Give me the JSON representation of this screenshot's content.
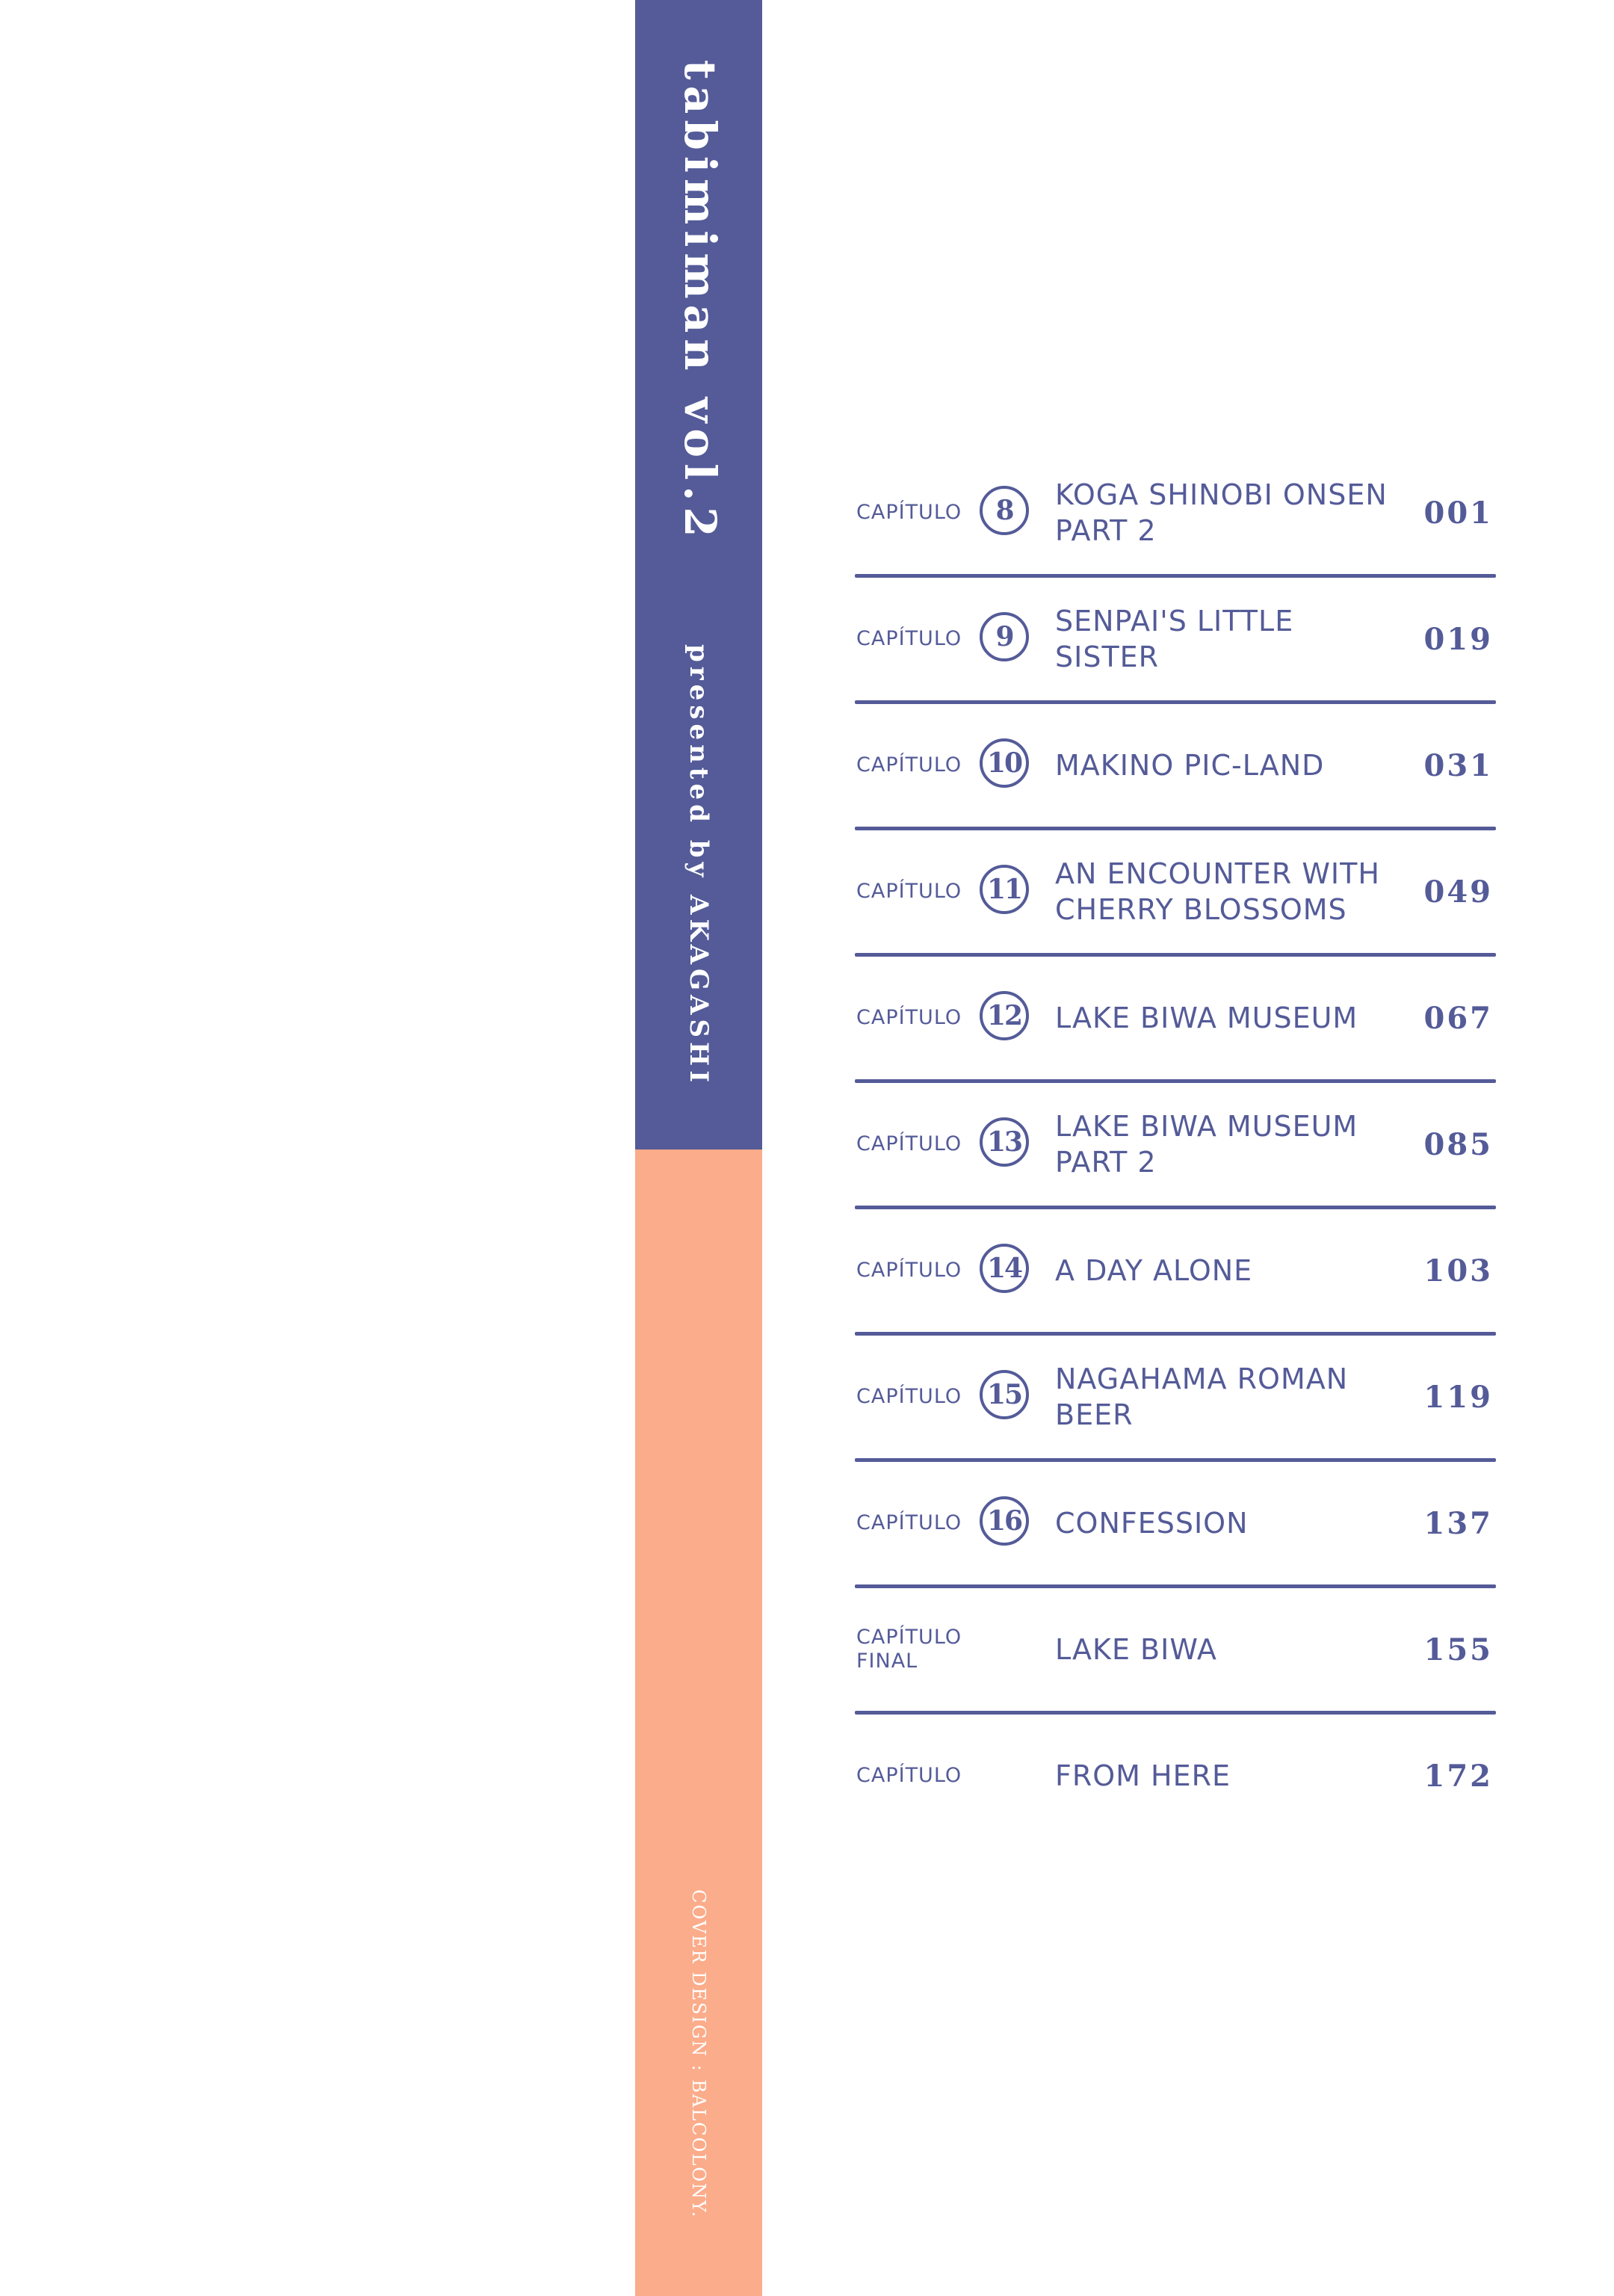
{
  "spine": {
    "title": "tabimiman vol.2",
    "author_line": "presented by AKAGASHI",
    "design_credit": "COVER DESIGN : BALCOLONY."
  },
  "colors": {
    "indigo": "#545b98",
    "peach": "#fbac8a"
  },
  "toc": {
    "entries": [
      {
        "cap": "CAPÍTULO",
        "num": "8",
        "title": "KOGA SHINOBI ONSEN PART 2",
        "page": "001"
      },
      {
        "cap": "CAPÍTULO",
        "num": "9",
        "title": "SENPAI'S LITTLE SISTER",
        "page": "019"
      },
      {
        "cap": "CAPÍTULO",
        "num": "10",
        "title": "MAKINO PIC-LAND",
        "page": "031"
      },
      {
        "cap": "CAPÍTULO",
        "num": "11",
        "title": "AN ENCOUNTER WITH CHERRY BLOSSOMS",
        "page": "049"
      },
      {
        "cap": "CAPÍTULO",
        "num": "12",
        "title": "LAKE BIWA MUSEUM",
        "page": "067"
      },
      {
        "cap": "CAPÍTULO",
        "num": "13",
        "title": "LAKE BIWA MUSEUM PART 2",
        "page": "085"
      },
      {
        "cap": "CAPÍTULO",
        "num": "14",
        "title": "A DAY ALONE",
        "page": "103"
      },
      {
        "cap": "CAPÍTULO",
        "num": "15",
        "title": "NAGAHAMA ROMAN BEER",
        "page": "119"
      },
      {
        "cap": "CAPÍTULO",
        "num": "16",
        "title": "CONFESSION",
        "page": "137"
      },
      {
        "cap": "CAPÍTULO",
        "cap2": "FINAL",
        "title": "LAKE BIWA",
        "page": "155"
      },
      {
        "cap": "CAPÍTULO",
        "title": "FROM HERE",
        "page": "172"
      }
    ]
  }
}
